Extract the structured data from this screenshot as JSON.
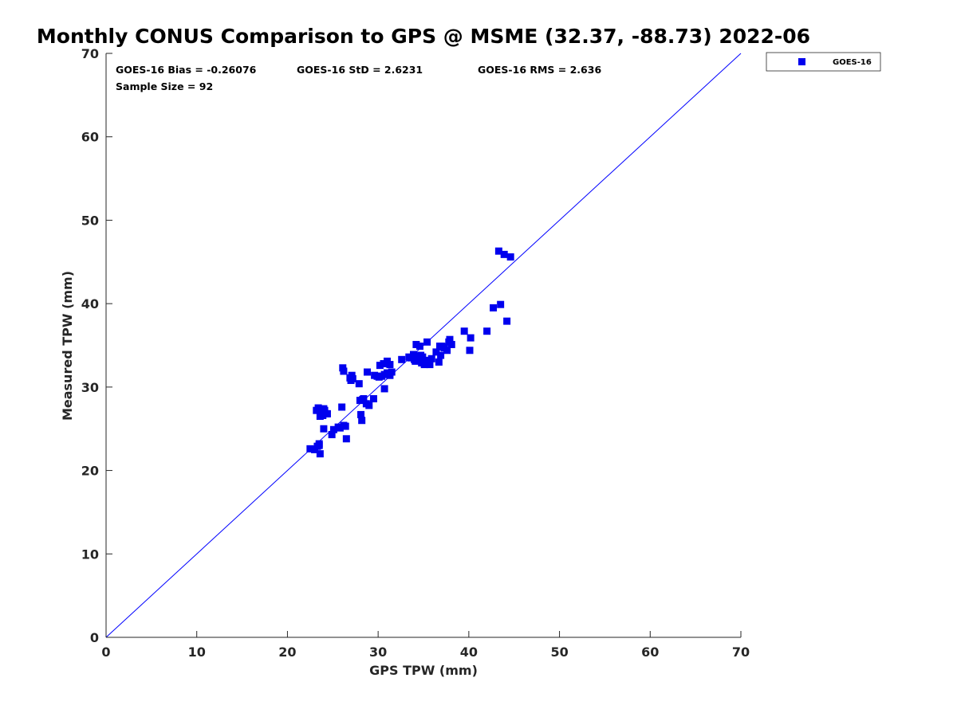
{
  "chart_data": {
    "type": "scatter",
    "title": "Monthly CONUS Comparison to GPS @ MSME (32.37, -88.73) 2022-06",
    "xlabel": "GPS TPW (mm)",
    "ylabel": "Measured TPW (mm)",
    "xlim": [
      0,
      70
    ],
    "ylim": [
      0,
      70
    ],
    "xticks": [
      0,
      10,
      20,
      30,
      40,
      50,
      60,
      70
    ],
    "yticks": [
      0,
      10,
      20,
      30,
      40,
      50,
      60,
      70
    ],
    "grid": false,
    "legend_position": "top-right-outside",
    "annotations": {
      "bias": "GOES-16 Bias = -0.26076",
      "std": "GOES-16 StD = 2.6231",
      "rms": "GOES-16 RMS = 2.636",
      "sample_size": "Sample Size = 92"
    },
    "reference_line": {
      "name": "1:1 line",
      "x": [
        0,
        70
      ],
      "y": [
        0,
        70
      ],
      "color": "#0000ff"
    },
    "series": [
      {
        "name": "GOES-16",
        "color": "#0000ee",
        "marker": "square",
        "x": [
          22.5,
          23.0,
          23.5,
          23.3,
          23.6,
          23.8,
          24.1,
          24.4,
          24.9,
          25.6,
          25.8,
          26.2,
          26.4,
          23.2,
          23.4,
          23.6,
          24.0,
          24.3,
          23.9,
          26.1,
          26.0,
          26.2,
          26.9,
          27.0,
          27.1,
          27.9,
          28.1,
          28.4,
          28.7,
          28.2,
          28.0,
          28.3,
          28.8,
          29.5,
          29.9,
          30.2,
          30.6,
          31.0,
          31.3,
          31.0,
          30.7,
          31.3,
          29.6,
          30.1,
          30.4,
          30.7,
          32.6,
          33.6,
          33.9,
          34.2,
          34.6,
          34.4,
          34.0,
          34.9,
          35.3,
          35.7,
          35.1,
          34.8,
          35.4,
          35.9,
          36.4,
          36.7,
          36.9,
          37.3,
          37.6,
          37.9,
          37.2,
          38.1,
          37.8,
          36.8,
          39.5,
          40.2,
          42.0,
          42.7,
          43.5,
          44.2,
          40.1,
          43.3,
          43.9,
          44.6,
          34.1,
          35.5,
          23.5,
          25.1,
          24.0,
          26.5,
          27.2,
          29.0,
          31.5,
          33.4,
          34.7,
          37.0
        ],
        "y": [
          22.6,
          22.5,
          23.2,
          22.9,
          22.0,
          27.3,
          27.2,
          26.8,
          24.3,
          25.2,
          25.1,
          25.4,
          25.3,
          27.2,
          27.5,
          26.5,
          27.4,
          26.8,
          26.6,
          32.3,
          27.6,
          31.9,
          31.1,
          30.8,
          31.4,
          30.4,
          26.7,
          28.6,
          28.0,
          26.0,
          28.4,
          28.5,
          31.8,
          28.6,
          31.3,
          32.6,
          32.8,
          33.1,
          32.7,
          31.7,
          29.8,
          31.4,
          31.4,
          31.2,
          31.3,
          31.5,
          33.3,
          33.5,
          33.9,
          35.1,
          34.9,
          33.7,
          33.3,
          33.6,
          33.2,
          32.7,
          32.7,
          32.9,
          35.4,
          33.4,
          34.2,
          33.0,
          33.8,
          34.7,
          34.4,
          35.7,
          34.8,
          35.1,
          35.4,
          34.9,
          36.7,
          35.9,
          36.7,
          39.5,
          39.9,
          37.9,
          34.4,
          46.3,
          45.9,
          45.6,
          33.1,
          33.0,
          23.0,
          24.9,
          25.0,
          23.8,
          31.0,
          27.8,
          31.8,
          33.6,
          33.8,
          34.9
        ]
      }
    ]
  }
}
